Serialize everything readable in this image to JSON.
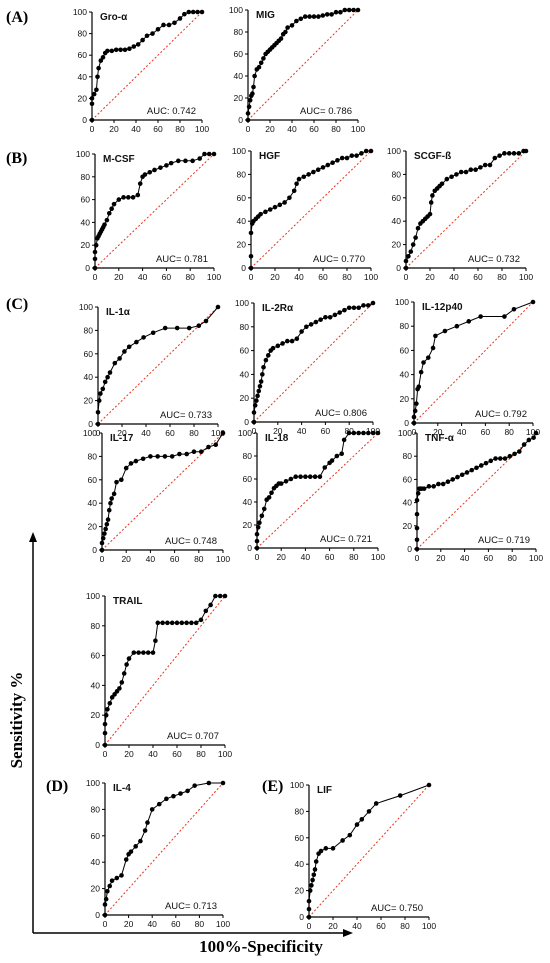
{
  "figure": {
    "y_axis_title": "Sensitivity %",
    "x_axis_title": "100%-Specificity",
    "section_labels": [
      "(A)",
      "(B)",
      "(C)",
      "(D)",
      "(E)"
    ]
  },
  "style": {
    "line_color": "#000000",
    "point_color": "#000000",
    "reference_color": "#e8331e"
  },
  "chart_data": [
    {
      "type": "line",
      "title": "Gro-α",
      "auc": "AUC: 0.742",
      "xlim": [
        0,
        100
      ],
      "ylim": [
        0,
        100
      ],
      "xticks": [
        0,
        20,
        40,
        60,
        80,
        100
      ],
      "yticks": [
        0,
        20,
        40,
        60,
        80,
        100
      ],
      "x": [
        0,
        0,
        0,
        2,
        4,
        5,
        6,
        8,
        10,
        12,
        14,
        18,
        22,
        26,
        30,
        34,
        38,
        42,
        46,
        50,
        55,
        60,
        65,
        70,
        75,
        80,
        84,
        88,
        92,
        96,
        100
      ],
      "y": [
        0,
        15,
        20,
        24,
        28,
        40,
        48,
        55,
        58,
        62,
        64,
        64,
        65,
        65,
        65,
        66,
        68,
        70,
        74,
        78,
        80,
        84,
        88,
        88,
        90,
        94,
        98,
        100,
        100,
        100,
        100
      ]
    },
    {
      "type": "line",
      "title": "MIG",
      "auc": "AUC= 0.786",
      "xlim": [
        0,
        100
      ],
      "ylim": [
        0,
        100
      ],
      "xticks": [
        0,
        20,
        40,
        60,
        80,
        100
      ],
      "yticks": [
        0,
        20,
        40,
        60,
        80,
        100
      ],
      "x": [
        0,
        0,
        1,
        2,
        3,
        4,
        5,
        6,
        8,
        10,
        12,
        14,
        16,
        18,
        20,
        22,
        24,
        26,
        28,
        30,
        32,
        34,
        36,
        40,
        44,
        48,
        52,
        56,
        60,
        64,
        68,
        72,
        76,
        80,
        84,
        88,
        92,
        96,
        100
      ],
      "y": [
        0,
        6,
        12,
        18,
        22,
        24,
        30,
        40,
        46,
        48,
        52,
        56,
        60,
        62,
        64,
        66,
        68,
        70,
        72,
        74,
        78,
        80,
        84,
        86,
        90,
        92,
        94,
        94,
        94,
        94,
        95,
        96,
        96,
        98,
        98,
        100,
        100,
        100,
        100
      ]
    },
    {
      "type": "line",
      "title": "M-CSF",
      "auc": "AUC= 0.781",
      "xlim": [
        0,
        100
      ],
      "ylim": [
        0,
        100
      ],
      "xticks": [
        0,
        20,
        40,
        60,
        80,
        100
      ],
      "yticks": [
        0,
        20,
        40,
        60,
        80,
        100
      ],
      "x": [
        0,
        0,
        0,
        1,
        2,
        3,
        4,
        5,
        6,
        7,
        8,
        10,
        12,
        14,
        16,
        20,
        24,
        28,
        32,
        36,
        38,
        40,
        42,
        46,
        50,
        55,
        60,
        64,
        70,
        76,
        82,
        88,
        92,
        96,
        100
      ],
      "y": [
        0,
        8,
        14,
        20,
        26,
        28,
        30,
        32,
        34,
        36,
        38,
        42,
        48,
        52,
        56,
        60,
        62,
        62,
        62,
        64,
        74,
        80,
        82,
        84,
        86,
        88,
        90,
        92,
        94,
        94,
        94,
        96,
        100,
        100,
        100
      ]
    },
    {
      "type": "line",
      "title": "HGF",
      "auc": "AUC= 0.770",
      "xlim": [
        0,
        100
      ],
      "ylim": [
        0,
        100
      ],
      "xticks": [
        0,
        20,
        40,
        60,
        80,
        100
      ],
      "yticks": [
        0,
        20,
        40,
        60,
        80,
        100
      ],
      "x": [
        0,
        0,
        0,
        1,
        2,
        4,
        6,
        8,
        12,
        16,
        20,
        24,
        28,
        32,
        36,
        38,
        40,
        44,
        48,
        52,
        56,
        60,
        64,
        68,
        72,
        76,
        80,
        84,
        88,
        92,
        96,
        100
      ],
      "y": [
        0,
        10,
        30,
        38,
        40,
        42,
        44,
        46,
        48,
        50,
        52,
        54,
        56,
        60,
        66,
        72,
        76,
        78,
        80,
        82,
        84,
        86,
        88,
        90,
        92,
        94,
        94,
        96,
        96,
        98,
        100,
        100
      ]
    },
    {
      "type": "line",
      "title": "SCGF-ß",
      "auc": "AUC= 0.732",
      "xlim": [
        0,
        100
      ],
      "ylim": [
        0,
        100
      ],
      "xticks": [
        0,
        20,
        40,
        60,
        80,
        100
      ],
      "yticks": [
        0,
        20,
        40,
        60,
        80,
        100
      ],
      "x": [
        0,
        0,
        2,
        4,
        6,
        8,
        10,
        12,
        14,
        16,
        18,
        20,
        21,
        22,
        24,
        26,
        28,
        30,
        34,
        38,
        42,
        46,
        50,
        54,
        58,
        62,
        66,
        70,
        74,
        78,
        82,
        86,
        90,
        94,
        98,
        100
      ],
      "y": [
        0,
        6,
        10,
        14,
        20,
        26,
        34,
        38,
        40,
        42,
        44,
        46,
        56,
        62,
        66,
        68,
        70,
        72,
        76,
        78,
        80,
        82,
        82,
        84,
        84,
        86,
        88,
        88,
        94,
        96,
        98,
        98,
        98,
        98,
        100,
        100
      ]
    },
    {
      "type": "line",
      "title": "IL-1α",
      "auc": "AUC= 0.733",
      "xlim": [
        0,
        100
      ],
      "ylim": [
        0,
        100
      ],
      "xticks": [
        0,
        20,
        40,
        60,
        80,
        100
      ],
      "yticks": [
        0,
        20,
        40,
        60,
        80,
        100
      ],
      "x": [
        0,
        0,
        1,
        2,
        4,
        6,
        8,
        10,
        14,
        18,
        22,
        26,
        32,
        38,
        46,
        56,
        66,
        76,
        84,
        90,
        100
      ],
      "y": [
        0,
        10,
        20,
        26,
        30,
        36,
        40,
        44,
        52,
        56,
        62,
        66,
        70,
        74,
        78,
        82,
        82,
        82,
        84,
        88,
        100
      ]
    },
    {
      "type": "line",
      "title": "IL-2Rα",
      "auc": "AUC= 0.806",
      "xlim": [
        0,
        100
      ],
      "ylim": [
        0,
        100
      ],
      "xticks": [
        0,
        20,
        40,
        60,
        80,
        100
      ],
      "yticks": [
        0,
        20,
        40,
        60,
        80,
        100
      ],
      "x": [
        0,
        0,
        1,
        2,
        3,
        4,
        5,
        6,
        7,
        8,
        10,
        12,
        14,
        16,
        20,
        24,
        28,
        32,
        36,
        40,
        44,
        48,
        52,
        56,
        60,
        64,
        68,
        72,
        76,
        80,
        84,
        88,
        92,
        96,
        100
      ],
      "y": [
        0,
        8,
        14,
        18,
        22,
        26,
        30,
        34,
        40,
        46,
        52,
        56,
        60,
        62,
        64,
        66,
        68,
        68,
        70,
        76,
        80,
        82,
        84,
        86,
        88,
        88,
        90,
        92,
        94,
        96,
        96,
        96,
        98,
        98,
        100
      ]
    },
    {
      "type": "line",
      "title": "IL-12p40",
      "auc": "AUC= 0.792",
      "xlim": [
        0,
        100
      ],
      "ylim": [
        0,
        100
      ],
      "xticks": [
        0,
        20,
        40,
        60,
        80,
        100
      ],
      "yticks": [
        0,
        20,
        40,
        60,
        80,
        100
      ],
      "x": [
        0,
        0,
        1,
        2,
        3,
        4,
        6,
        8,
        12,
        16,
        18,
        26,
        36,
        46,
        56,
        76,
        84,
        100
      ],
      "y": [
        0,
        5,
        10,
        16,
        28,
        30,
        42,
        50,
        54,
        62,
        72,
        76,
        80,
        84,
        88,
        88,
        94,
        100
      ]
    },
    {
      "type": "line",
      "title": "IL-17",
      "auc": "AUC= 0.748",
      "xlim": [
        0,
        100
      ],
      "ylim": [
        0,
        100
      ],
      "xticks": [
        0,
        20,
        40,
        60,
        80,
        100
      ],
      "yticks": [
        0,
        20,
        40,
        60,
        80,
        100
      ],
      "x": [
        0,
        0,
        1,
        2,
        3,
        4,
        5,
        6,
        7,
        8,
        10,
        12,
        16,
        20,
        24,
        28,
        34,
        40,
        46,
        52,
        58,
        64,
        70,
        76,
        82,
        88,
        94,
        100
      ],
      "y": [
        0,
        6,
        10,
        14,
        18,
        22,
        26,
        34,
        40,
        44,
        48,
        58,
        60,
        70,
        74,
        76,
        78,
        80,
        80,
        80,
        80,
        82,
        82,
        84,
        84,
        88,
        90,
        100
      ]
    },
    {
      "type": "line",
      "title": "IL-18",
      "auc": "AUC= 0.721",
      "xlim": [
        0,
        100
      ],
      "ylim": [
        0,
        100
      ],
      "xticks": [
        0,
        20,
        40,
        60,
        80,
        100
      ],
      "yticks": [
        0,
        20,
        40,
        60,
        80,
        100
      ],
      "x": [
        0,
        0,
        0,
        1,
        2,
        4,
        6,
        8,
        10,
        12,
        14,
        16,
        18,
        20,
        24,
        28,
        32,
        36,
        40,
        44,
        48,
        52,
        56,
        60,
        62,
        66,
        70,
        72,
        76,
        80,
        84,
        88,
        92,
        96,
        100
      ],
      "y": [
        0,
        6,
        12,
        18,
        22,
        28,
        34,
        42,
        44,
        48,
        52,
        54,
        56,
        56,
        58,
        60,
        62,
        62,
        62,
        62,
        62,
        62,
        70,
        74,
        76,
        80,
        82,
        94,
        100,
        100,
        100,
        100,
        100,
        100,
        100
      ]
    },
    {
      "type": "line",
      "title": "TNF-α",
      "auc": "AUC= 0.719",
      "xlim": [
        0,
        100
      ],
      "ylim": [
        0,
        100
      ],
      "xticks": [
        0,
        20,
        40,
        60,
        80,
        100
      ],
      "yticks": [
        0,
        20,
        40,
        60,
        80,
        100
      ],
      "x": [
        0,
        0,
        0,
        0,
        0,
        1,
        2,
        3,
        4,
        6,
        10,
        14,
        18,
        22,
        26,
        30,
        34,
        38,
        42,
        46,
        50,
        54,
        58,
        62,
        66,
        70,
        74,
        78,
        82,
        86,
        90,
        94,
        98,
        100
      ],
      "y": [
        0,
        8,
        18,
        30,
        42,
        48,
        52,
        52,
        52,
        52,
        54,
        54,
        56,
        56,
        58,
        60,
        62,
        64,
        66,
        68,
        70,
        72,
        74,
        76,
        78,
        78,
        78,
        80,
        82,
        84,
        90,
        94,
        96,
        100
      ]
    },
    {
      "type": "line",
      "title": "TRAIL",
      "auc": "AUC= 0.707",
      "xlim": [
        0,
        100
      ],
      "ylim": [
        0,
        100
      ],
      "xticks": [
        0,
        20,
        40,
        60,
        80,
        100
      ],
      "yticks": [
        0,
        20,
        40,
        60,
        80,
        100
      ],
      "x": [
        0,
        0,
        0,
        1,
        2,
        4,
        6,
        8,
        10,
        12,
        14,
        16,
        18,
        20,
        24,
        28,
        32,
        36,
        40,
        42,
        44,
        48,
        52,
        56,
        60,
        64,
        68,
        72,
        76,
        80,
        84,
        88,
        92,
        96,
        100
      ],
      "y": [
        0,
        8,
        14,
        20,
        24,
        28,
        32,
        34,
        36,
        38,
        42,
        48,
        54,
        58,
        62,
        62,
        62,
        62,
        62,
        70,
        82,
        82,
        82,
        82,
        82,
        82,
        82,
        82,
        82,
        84,
        90,
        94,
        100,
        100,
        100
      ]
    },
    {
      "type": "line",
      "title": "IL-4",
      "auc": "AUC= 0.713",
      "xlim": [
        0,
        100
      ],
      "ylim": [
        0,
        100
      ],
      "xticks": [
        0,
        20,
        40,
        60,
        80,
        100
      ],
      "yticks": [
        0,
        20,
        40,
        60,
        80,
        100
      ],
      "x": [
        0,
        0,
        1,
        2,
        4,
        6,
        10,
        14,
        18,
        20,
        22,
        26,
        30,
        34,
        36,
        40,
        46,
        52,
        58,
        64,
        70,
        76,
        88,
        100
      ],
      "y": [
        0,
        8,
        12,
        18,
        22,
        26,
        28,
        30,
        42,
        46,
        48,
        52,
        56,
        64,
        70,
        80,
        84,
        88,
        90,
        92,
        94,
        98,
        100,
        100
      ]
    },
    {
      "type": "line",
      "title": "LIF",
      "auc": "AUC= 0.750",
      "xlim": [
        0,
        100
      ],
      "ylim": [
        0,
        100
      ],
      "xticks": [
        0,
        20,
        40,
        60,
        80,
        100
      ],
      "yticks": [
        0,
        20,
        40,
        60,
        80,
        100
      ],
      "x": [
        0,
        0,
        0,
        1,
        2,
        3,
        4,
        5,
        6,
        8,
        10,
        14,
        20,
        28,
        34,
        40,
        44,
        50,
        56,
        76,
        100
      ],
      "y": [
        0,
        6,
        12,
        20,
        24,
        28,
        32,
        36,
        42,
        48,
        50,
        52,
        52,
        58,
        62,
        70,
        74,
        80,
        86,
        92,
        100
      ]
    }
  ]
}
